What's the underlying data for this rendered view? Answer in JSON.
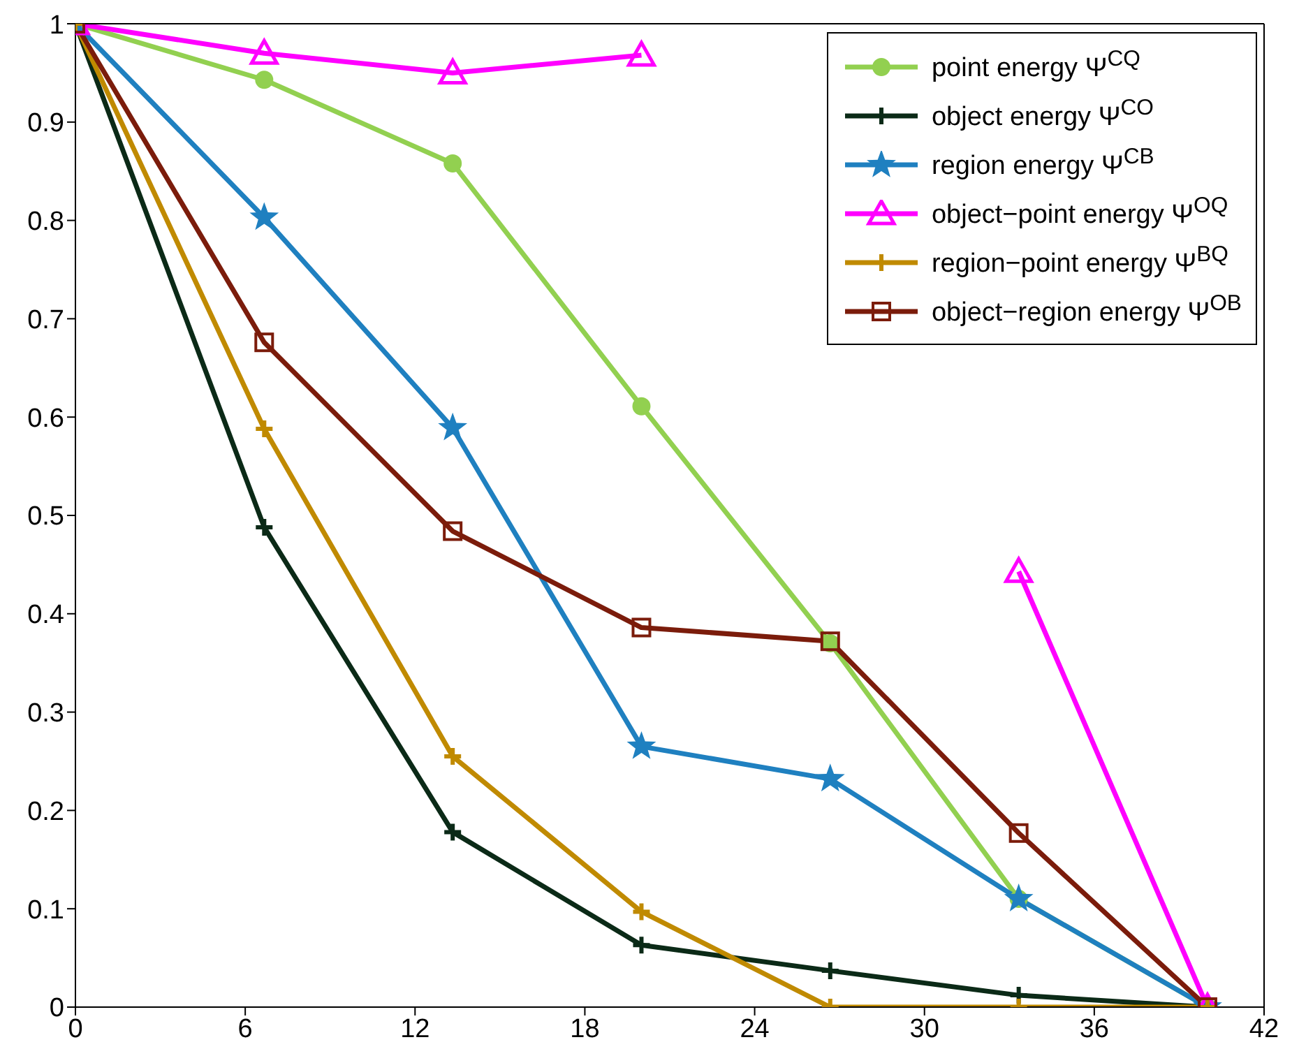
{
  "chart_data": {
    "type": "line",
    "x": [
      0,
      6.67,
      13.33,
      20,
      26.67,
      33.33,
      40
    ],
    "xlim": [
      0,
      42
    ],
    "xticks": [
      0,
      6,
      12,
      18,
      24,
      30,
      36,
      42
    ],
    "ylim": [
      0,
      1
    ],
    "yticks": [
      0,
      0.1,
      0.2,
      0.3,
      0.4,
      0.5,
      0.6,
      0.7,
      0.8,
      0.9,
      1
    ],
    "grid": false,
    "legend": "top right",
    "line_style": "solid",
    "series": [
      {
        "name": "point energy Ψ$^{CQ}$",
        "color": "#92d050",
        "marker": "circle",
        "values": [
          1,
          0.943,
          0.858,
          0.611,
          0.37,
          0.11,
          0
        ]
      },
      {
        "name": "object energy  Ψ$^{CO}$",
        "color": "#0b2a17",
        "marker": "cross",
        "values": [
          1,
          0.488,
          0.178,
          0.063,
          0.037,
          0.012,
          0
        ]
      },
      {
        "name": "region energy  Ψ$^{CB}$",
        "color": "#1f80c0",
        "marker": "star",
        "values": [
          1,
          0.803,
          0.589,
          0.265,
          0.232,
          0.11,
          0
        ]
      },
      {
        "name": "object−point energy  Ψ$^{OQ}$",
        "color": "#ff00ff",
        "marker": "triangle",
        "values": [
          1,
          0.97,
          0.95,
          0.968,
          null,
          0.443,
          0
        ]
      },
      {
        "name": "region−point energy  Ψ$^{BQ}$",
        "color": "#c08a00",
        "marker": "cross",
        "values": [
          1,
          0.588,
          0.255,
          0.097,
          0,
          0,
          0
        ]
      },
      {
        "name": "object−region energy  Ψ$^{OB}$",
        "color": "#7b1c0b",
        "marker": "square",
        "values": [
          1,
          0.676,
          0.484,
          0.386,
          0.372,
          0.177,
          0
        ]
      }
    ]
  }
}
